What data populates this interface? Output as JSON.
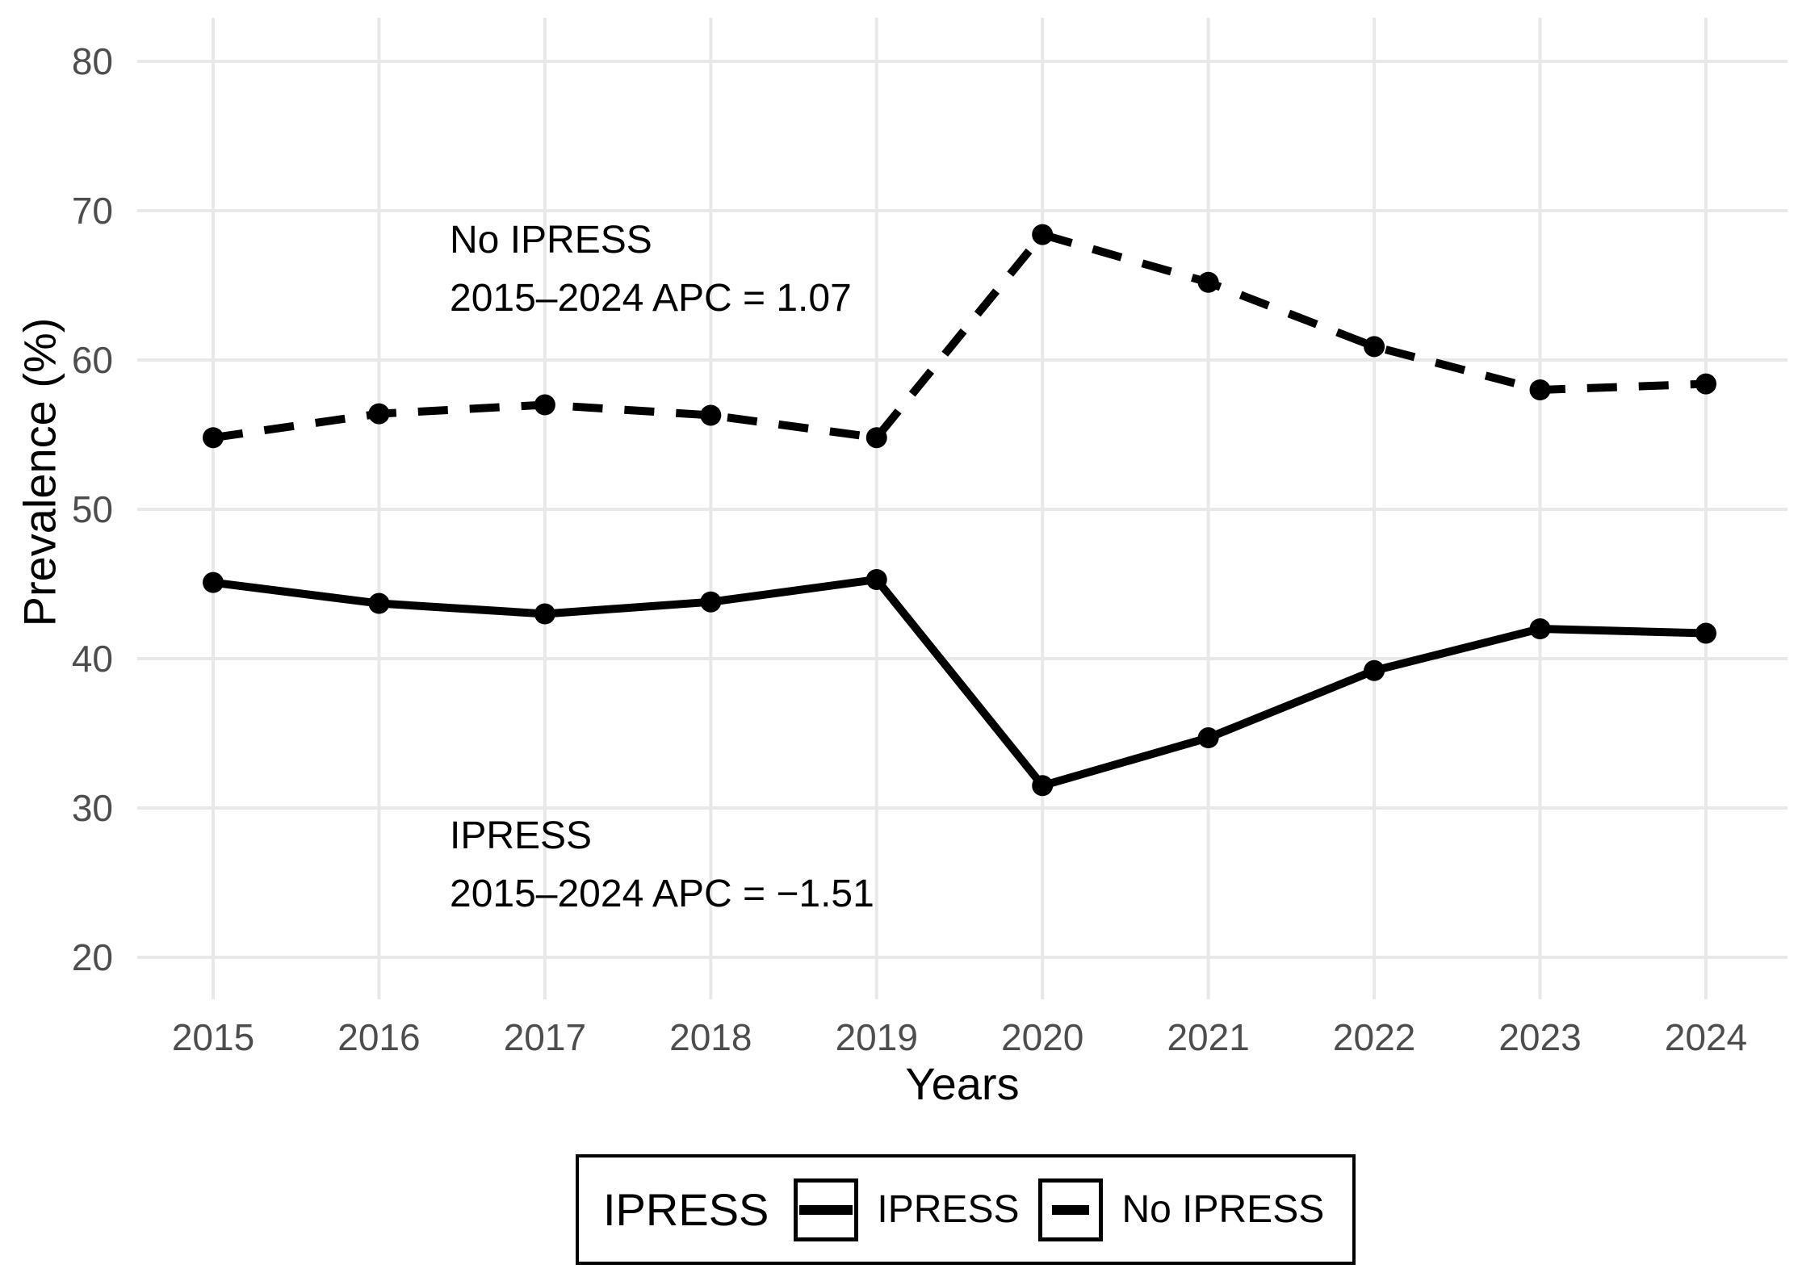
{
  "chart_data": {
    "type": "line",
    "title": "",
    "xlabel": "Years",
    "ylabel": "Prevalence (%)",
    "categories": [
      "2015",
      "2016",
      "2017",
      "2018",
      "2019",
      "2020",
      "2021",
      "2022",
      "2023",
      "2024"
    ],
    "series": [
      {
        "name": "IPRESS",
        "line_style": "solid",
        "values": [
          45.1,
          43.7,
          43.0,
          43.8,
          45.3,
          31.5,
          34.7,
          39.2,
          42.0,
          41.7
        ]
      },
      {
        "name": "No IPRESS",
        "line_style": "dashed",
        "values": [
          54.8,
          56.4,
          57.0,
          56.3,
          54.8,
          68.4,
          65.2,
          60.9,
          58.0,
          58.4
        ]
      }
    ],
    "y_ticks": [
      20,
      30,
      40,
      50,
      60,
      70,
      80
    ],
    "ylim": [
      17,
      83
    ],
    "grid": true,
    "legend_position": "bottom",
    "annotations": [
      {
        "line1": "No IPRESS",
        "line2": "2015–2024 APC = 1.07"
      },
      {
        "line1": "IPRESS",
        "line2": "2015–2024 APC = −1.51"
      }
    ]
  },
  "legend": {
    "title": "IPRESS",
    "items": [
      {
        "label": "IPRESS",
        "style": "solid"
      },
      {
        "label": "No IPRESS",
        "style": "dashed"
      }
    ]
  },
  "colors": {
    "line": "#000000",
    "grid": "#e8e8e8",
    "tick_label": "#4d4d4d",
    "axis_title": "#000000",
    "background": "#ffffff"
  }
}
